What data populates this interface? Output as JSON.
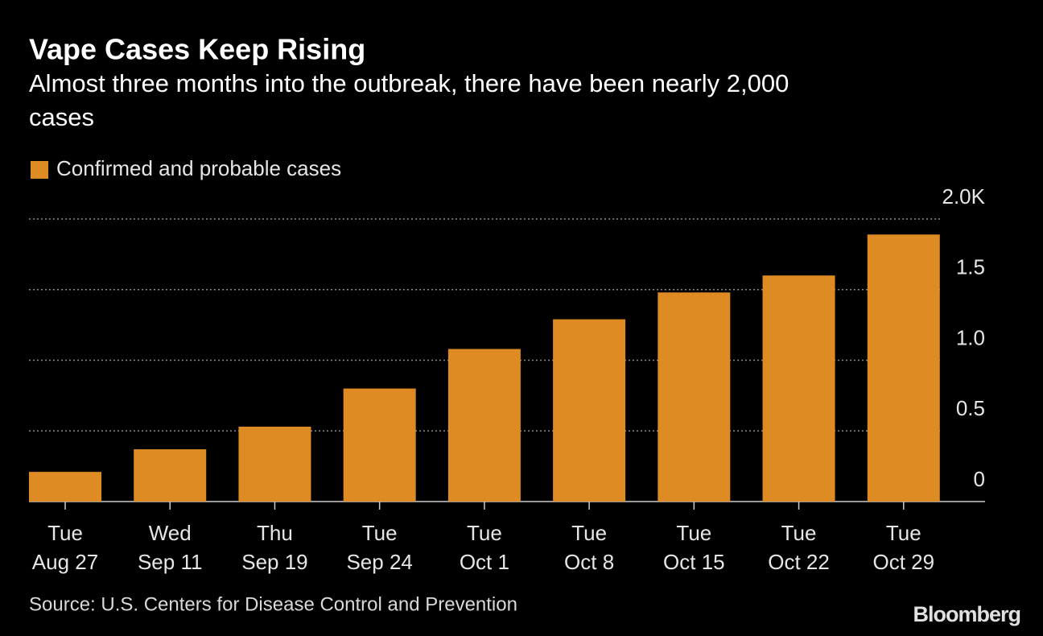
{
  "chart_data": {
    "type": "bar",
    "title": "Vape Cases Keep Rising",
    "subtitle": [
      "Almost three months into the outbreak, there have been nearly 2,000",
      "cases"
    ],
    "categories": [
      [
        "Tue",
        "Aug 27"
      ],
      [
        "Wed",
        "Sep 11"
      ],
      [
        "Thu",
        "Sep 19"
      ],
      [
        "Tue",
        "Sep 24"
      ],
      [
        "Tue",
        "Oct 1"
      ],
      [
        "Tue",
        "Oct 8"
      ],
      [
        "Tue",
        "Oct 15"
      ],
      [
        "Tue",
        "Oct 22"
      ],
      [
        "Tue",
        "Oct 29"
      ]
    ],
    "series": [
      {
        "name": "Confirmed and probable cases",
        "color": "#df8b23",
        "values": [
          0.21,
          0.37,
          0.53,
          0.8,
          1.08,
          1.29,
          1.48,
          1.6,
          1.89
        ]
      }
    ],
    "ylim": [
      0,
      2
    ],
    "yticks": [
      0,
      0.5,
      {
        "value": 1,
        "label": "1.0"
      },
      1.5,
      {
        "value": 2,
        "label": "2.0K"
      }
    ],
    "grid": true,
    "source": "Source: U.S. Centers for Disease Control and Prevention",
    "brand": "Bloomberg"
  }
}
